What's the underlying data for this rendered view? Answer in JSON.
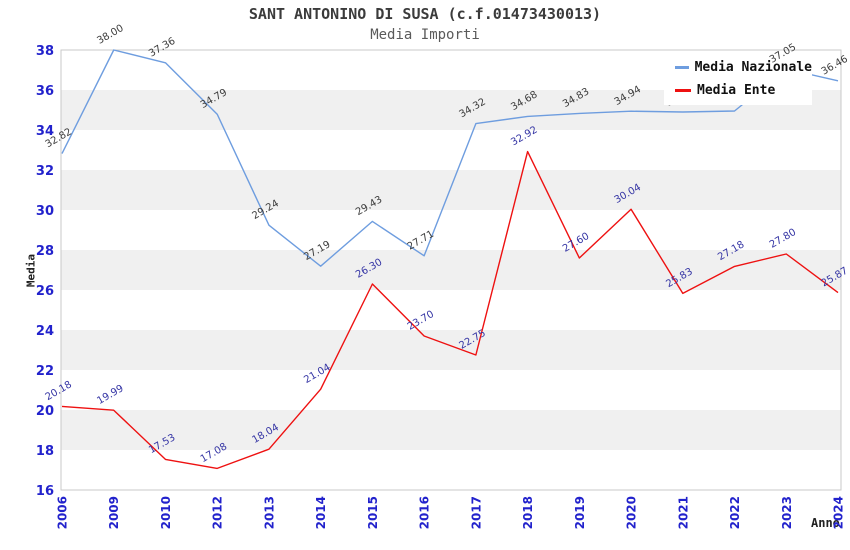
{
  "title": "SANT ANTONINO DI SUSA (c.f.01473430013)",
  "subtitle": "Media Importi",
  "axes": {
    "y_label": "Media",
    "x_label": "Anno",
    "y_ticks": [
      16,
      18,
      20,
      22,
      24,
      26,
      28,
      30,
      32,
      34,
      36,
      38
    ]
  },
  "legend": {
    "items": [
      {
        "label": "Media Nazionale",
        "color": "#6e9ddf"
      },
      {
        "label": "Media Ente",
        "color": "#ee1111"
      }
    ]
  },
  "colors": {
    "band_gray": "#f0f0f0",
    "plot_border": "#c9c9c9",
    "tick_label_blue": "#2222cc",
    "nazionale_line": "#6e9ddf",
    "ente_line": "#ee1111",
    "nazionale_value_label": "#3c3c3c",
    "ente_value_label": "#3434a4"
  },
  "chart_data": {
    "type": "line",
    "title": "SANT ANTONINO DI SUSA (c.f.01473430013)",
    "subtitle": "Media Importi",
    "xlabel": "Anno",
    "ylabel": "Media",
    "ylim": [
      16,
      38
    ],
    "grid": "alternating-bands",
    "legend_position": "top-right-overlay",
    "x": [
      "2006",
      "2009",
      "2010",
      "2012",
      "2013",
      "2014",
      "2015",
      "2016",
      "2017",
      "2018",
      "2019",
      "2020",
      "2021",
      "2022",
      "2023",
      "2024"
    ],
    "series": [
      {
        "name": "Media Nazionale",
        "color": "#6e9ddf",
        "label_color": "#3c3c3c",
        "values": [
          32.82,
          38.0,
          37.36,
          34.79,
          29.24,
          27.19,
          29.43,
          27.71,
          34.32,
          34.68,
          34.83,
          34.94,
          34.9,
          34.95,
          37.05,
          36.46
        ],
        "labels_hidden_by_legend_indices": [
          12,
          13
        ]
      },
      {
        "name": "Media Ente",
        "color": "#ee1111",
        "label_color": "#3434a4",
        "values": [
          20.18,
          19.99,
          17.53,
          17.08,
          18.04,
          21.04,
          26.3,
          23.7,
          22.75,
          32.92,
          27.6,
          30.04,
          25.83,
          27.18,
          27.8,
          25.87
        ]
      }
    ]
  }
}
